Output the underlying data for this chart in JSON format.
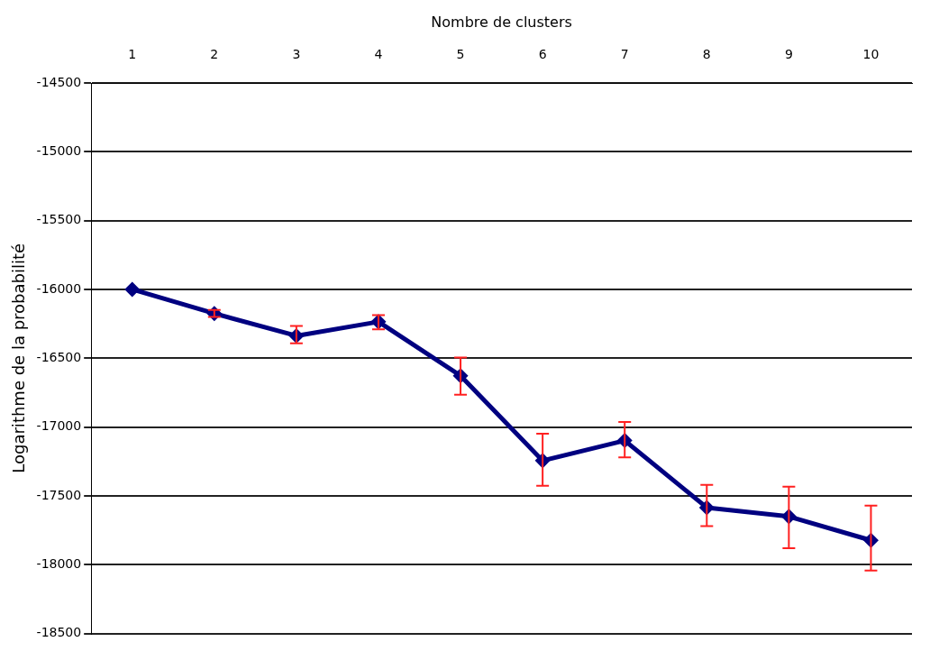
{
  "chart_data": {
    "type": "line",
    "xlabel": "Nombre de clusters",
    "ylabel": "Logarithme de la probabilité",
    "categories": [
      "1",
      "2",
      "3",
      "4",
      "5",
      "6",
      "7",
      "8",
      "9",
      "10"
    ],
    "series": [
      {
        "color": "#000080",
        "values": [
          -16000,
          -16175,
          -16337,
          -16235,
          -16627,
          -17244,
          -17098,
          -17585,
          -17650,
          -17823
        ],
        "errors": [
          null,
          25,
          [
            -16392,
            -16265
          ],
          [
            -16290,
            -16187
          ],
          [
            -16765,
            -16494
          ],
          [
            -17427,
            -17049
          ],
          [
            -17220,
            -16963
          ],
          [
            -17720,
            -17420
          ],
          [
            -17880,
            -17433
          ],
          [
            -18043,
            -17570
          ]
        ]
      }
    ],
    "ylim": [
      -18500,
      -14500
    ],
    "yticks": [
      -14500,
      -15000,
      -15500,
      -16000,
      -16500,
      -17000,
      -17500,
      -18000,
      -18500
    ],
    "grid": "y",
    "legend": false,
    "marker": "diamond",
    "line_style": "solid"
  }
}
